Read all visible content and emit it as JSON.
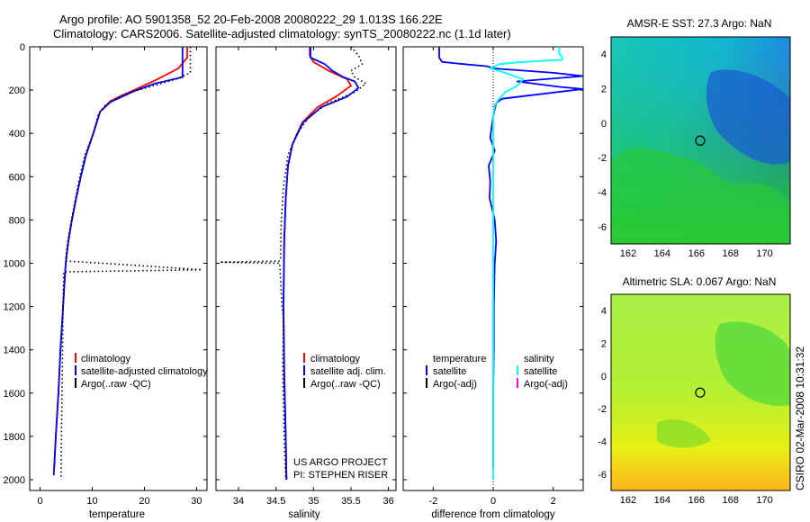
{
  "title_line1": "Argo profile: AO 5901358_52 20-Feb-2008 20080222_29 1.013S 166.22E",
  "title_line2": "Climatology: CARS2006. Satellite-adjusted climatology: synTS_20080222.nc (1.1d later)",
  "project_line1": "US ARGO PROJECT",
  "project_line2": "PI: STEPHEN RISER",
  "timestamp": "CSIRO 02-Mar-2008 10:31:32",
  "colors": {
    "red": "#ff0000",
    "blue": "#0000ff",
    "cyan": "#00ffff",
    "magenta": "#ff00ff",
    "black": "#000000"
  },
  "chart_data": [
    {
      "type": "line",
      "xlabel": "temperature",
      "xlim": [
        -2,
        32
      ],
      "ylim": [
        2050,
        0
      ],
      "xticks": [
        0,
        10,
        20,
        30
      ],
      "yticks": [
        0,
        200,
        400,
        600,
        800,
        1000,
        1200,
        1400,
        1600,
        1800,
        2000
      ],
      "legend": [
        "climatology",
        "satellite-adjusted climatology",
        "Argo(..raw -QC)"
      ],
      "series": [
        {
          "name": "climatology",
          "color": "red",
          "style": "solid",
          "points": [
            [
              28.2,
              0
            ],
            [
              28.2,
              50
            ],
            [
              26.5,
              100
            ],
            [
              22.5,
              150
            ],
            [
              18,
              200
            ],
            [
              13.5,
              250
            ],
            [
              11.5,
              300
            ],
            [
              10.2,
              400
            ],
            [
              8.8,
              500
            ],
            [
              7.8,
              600
            ],
            [
              6.9,
              700
            ],
            [
              6.1,
              800
            ],
            [
              5.4,
              900
            ],
            [
              4.9,
              1000
            ],
            [
              4.4,
              1200
            ],
            [
              3.9,
              1400
            ],
            [
              3.5,
              1600
            ],
            [
              3.0,
              1800
            ],
            [
              2.7,
              1950
            ]
          ]
        },
        {
          "name": "satellite-adjusted climatology",
          "color": "blue",
          "style": "solid",
          "points": [
            [
              27.3,
              0
            ],
            [
              27.3,
              140
            ],
            [
              22,
              170
            ],
            [
              18,
              205
            ],
            [
              13.5,
              255
            ],
            [
              11.5,
              300
            ],
            [
              10.2,
              400
            ],
            [
              8.8,
              500
            ],
            [
              7.8,
              600
            ],
            [
              6.9,
              700
            ],
            [
              6.1,
              800
            ],
            [
              5.4,
              900
            ],
            [
              4.9,
              1000
            ],
            [
              4.4,
              1200
            ],
            [
              3.9,
              1400
            ],
            [
              3.5,
              1600
            ],
            [
              3.0,
              1800
            ],
            [
              2.6,
              1980
            ]
          ]
        },
        {
          "name": "Argo(..raw -QC)",
          "color": "black",
          "style": "dotted",
          "points": [
            [
              28.8,
              0
            ],
            [
              28.8,
              120
            ],
            [
              26,
              150
            ],
            [
              21,
              185
            ],
            [
              16,
              220
            ],
            [
              12.5,
              270
            ],
            [
              11.2,
              310
            ],
            [
              10.2,
              400
            ],
            [
              8.6,
              500
            ],
            [
              7.6,
              600
            ],
            [
              6.8,
              700
            ],
            [
              6.0,
              800
            ],
            [
              5.3,
              900
            ],
            [
              4.9,
              980
            ],
            [
              5.0,
              990
            ],
            [
              12,
              1000
            ],
            [
              31,
              1030
            ],
            [
              4.5,
              1040
            ],
            [
              4.4,
              1200
            ],
            [
              4.3,
              1400
            ],
            [
              4.2,
              1600
            ],
            [
              4.1,
              1800
            ],
            [
              4.0,
              2000
            ]
          ]
        }
      ]
    },
    {
      "type": "line",
      "xlabel": "salinity",
      "xlim": [
        33.7,
        36.1
      ],
      "ylim": [
        2050,
        0
      ],
      "xticks": [
        34,
        34.5,
        35,
        35.5,
        36
      ],
      "yticks": [
        0,
        200,
        400,
        600,
        800,
        1000,
        1200,
        1400,
        1600,
        1800,
        2000
      ],
      "legend": [
        "climatology",
        "satellite adj. clim.",
        "Argo(..raw -QC)"
      ],
      "series": [
        {
          "name": "climatology",
          "color": "red",
          "style": "solid",
          "points": [
            [
              34.95,
              0
            ],
            [
              34.95,
              40
            ],
            [
              35.0,
              70
            ],
            [
              35.2,
              110
            ],
            [
              35.45,
              150
            ],
            [
              35.5,
              180
            ],
            [
              35.3,
              230
            ],
            [
              35.05,
              280
            ],
            [
              34.85,
              350
            ],
            [
              34.72,
              450
            ],
            [
              34.66,
              550
            ],
            [
              34.63,
              700
            ],
            [
              34.61,
              900
            ],
            [
              34.6,
              1200
            ],
            [
              34.61,
              1500
            ],
            [
              34.63,
              1800
            ],
            [
              34.64,
              2000
            ]
          ]
        },
        {
          "name": "satellite adj. clim.",
          "color": "blue",
          "style": "solid",
          "points": [
            [
              34.96,
              0
            ],
            [
              34.96,
              50
            ],
            [
              35.15,
              80
            ],
            [
              35.25,
              110
            ],
            [
              35.4,
              140
            ],
            [
              35.55,
              160
            ],
            [
              35.6,
              190
            ],
            [
              35.45,
              230
            ],
            [
              35.1,
              280
            ],
            [
              34.86,
              350
            ],
            [
              34.72,
              450
            ],
            [
              34.66,
              550
            ],
            [
              34.63,
              700
            ],
            [
              34.61,
              900
            ],
            [
              34.6,
              1200
            ],
            [
              34.61,
              1500
            ],
            [
              34.63,
              1800
            ],
            [
              34.64,
              2000
            ]
          ]
        },
        {
          "name": "Argo(..raw -QC)",
          "color": "black",
          "style": "dotted",
          "points": [
            [
              35.5,
              0
            ],
            [
              35.6,
              40
            ],
            [
              35.65,
              80
            ],
            [
              35.5,
              110
            ],
            [
              35.55,
              140
            ],
            [
              35.7,
              170
            ],
            [
              35.55,
              210
            ],
            [
              35.2,
              260
            ],
            [
              34.95,
              320
            ],
            [
              34.78,
              400
            ],
            [
              34.66,
              500
            ],
            [
              34.6,
              650
            ],
            [
              34.57,
              800
            ],
            [
              34.56,
              980
            ],
            [
              34.55,
              990
            ],
            [
              33.75,
              995
            ],
            [
              34.55,
              1000
            ],
            [
              34.58,
              1200
            ],
            [
              34.6,
              1250
            ],
            [
              34.59,
              1500
            ],
            [
              34.61,
              1800
            ],
            [
              34.63,
              2000
            ]
          ]
        }
      ]
    },
    {
      "type": "line",
      "xlabel": "difference from climatology",
      "xlim": [
        -3,
        3
      ],
      "ylim": [
        2050,
        0
      ],
      "xticks": [
        -2,
        0,
        2
      ],
      "yticks": [
        0,
        200,
        400,
        600,
        800,
        1000,
        1200,
        1400,
        1600,
        1800,
        2000
      ],
      "legend": [
        "temperature",
        "satellite",
        "Argo(-adj)",
        "salinity",
        "satellite",
        "Argo(-adj)"
      ],
      "series": [
        {
          "name": "temperature satellite",
          "color": "blue",
          "style": "solid",
          "points": [
            [
              -1.8,
              0
            ],
            [
              -1.8,
              50
            ],
            [
              -1.7,
              70
            ],
            [
              -1.0,
              80
            ],
            [
              -0.2,
              90
            ],
            [
              0,
              100
            ],
            [
              2.0,
              120
            ],
            [
              3.0,
              135
            ],
            [
              0.8,
              160
            ],
            [
              2.2,
              185
            ],
            [
              3.0,
              195
            ],
            [
              0.3,
              240
            ],
            [
              0.1,
              260
            ],
            [
              0,
              320
            ],
            [
              -0.1,
              420
            ],
            [
              0.05,
              480
            ],
            [
              -0.15,
              550
            ],
            [
              -0.1,
              620
            ],
            [
              -0.12,
              700
            ],
            [
              0.05,
              800
            ],
            [
              0.1,
              900
            ],
            [
              0.05,
              1000
            ],
            [
              0.02,
              1200
            ],
            [
              0.02,
              1400
            ],
            [
              0,
              1600
            ],
            [
              0,
              1800
            ],
            [
              0,
              1950
            ]
          ]
        },
        {
          "name": "salinity satellite",
          "color": "cyan",
          "style": "solid",
          "points": [
            [
              2.2,
              0
            ],
            [
              2.2,
              30
            ],
            [
              2.3,
              50
            ],
            [
              2.3,
              60
            ],
            [
              1.0,
              70
            ],
            [
              0.2,
              80
            ],
            [
              -0.1,
              100
            ],
            [
              0.4,
              120
            ],
            [
              1.0,
              150
            ],
            [
              0.8,
              180
            ],
            [
              0.4,
              210
            ],
            [
              0.2,
              240
            ],
            [
              0.05,
              270
            ],
            [
              0,
              320
            ],
            [
              0,
              500
            ],
            [
              0,
              800
            ],
            [
              0,
              1200
            ],
            [
              0,
              1600
            ],
            [
              0,
              2000
            ]
          ]
        }
      ]
    },
    {
      "type": "heatmap",
      "title": "AMSR-E SST: 27.3 Argo: NaN",
      "xlim": [
        161,
        171.5
      ],
      "ylim": [
        -7,
        5
      ],
      "xticks": [
        162,
        164,
        166,
        168,
        170
      ],
      "yticks": [
        4,
        2,
        0,
        -2,
        -4,
        -6
      ],
      "marker": [
        166.22,
        -1.013
      ]
    },
    {
      "type": "heatmap",
      "title": "Altimetric SLA: 0.067 Argo: NaN",
      "xlim": [
        161,
        171.5
      ],
      "ylim": [
        -7,
        5
      ],
      "xticks": [
        162,
        164,
        166,
        168,
        170
      ],
      "yticks": [
        4,
        2,
        0,
        -2,
        -4,
        -6
      ],
      "marker": [
        166.22,
        -1.013
      ]
    }
  ]
}
